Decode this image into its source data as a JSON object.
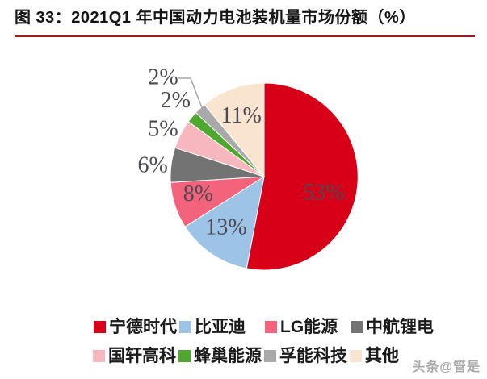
{
  "header": {
    "title": "图 33：2021Q1 年中国动力电池装机量市场份额（%）",
    "rule_color": "#9B1B1F"
  },
  "chart_data": {
    "type": "pie",
    "title": "2021Q1 年中国动力电池装机量市场份额（%）",
    "unit": "%",
    "start_angle_deg": 0,
    "direction": "clockwise",
    "legend_position": "bottom",
    "label_color": "#4A4A52",
    "leader_line_color": "#A6A6A6",
    "slices": [
      {
        "label": "宁德时代",
        "value": 53,
        "display": "53%",
        "color": "#D80018"
      },
      {
        "label": "比亚迪",
        "value": 13,
        "display": "13%",
        "color": "#9DC3E6"
      },
      {
        "label": "LG能源",
        "value": 8,
        "display": "8%",
        "color": "#F4637C"
      },
      {
        "label": "中航锂电",
        "value": 6,
        "display": "6%",
        "color": "#737373"
      },
      {
        "label": "国轩高科",
        "value": 5,
        "display": "5%",
        "color": "#F6B8BE"
      },
      {
        "label": "蜂巢能源",
        "value": 2,
        "display": "2%",
        "color": "#4EA72E"
      },
      {
        "label": "孚能科技",
        "value": 2,
        "display": "2%",
        "color": "#A9A9A9"
      },
      {
        "label": "其他",
        "value": 11,
        "display": "11%",
        "color": "#F9E4D0"
      }
    ]
  },
  "watermark": {
    "text": "头条@管是"
  }
}
